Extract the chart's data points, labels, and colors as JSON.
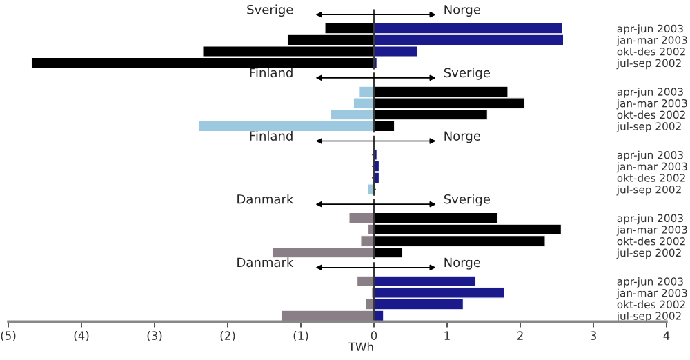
{
  "chart_data": [
    {
      "type": "bar",
      "orientation": "horizontal",
      "categories": [
        "apr-jun 2003",
        "jan-mar 2003",
        "okt-des 2002",
        "jul-sep 2002"
      ],
      "annotations": [
        "Sverige",
        "Norge"
      ],
      "stacked": true,
      "xlim": [
        -5,
        4
      ],
      "tick_labels": "y",
      "series": [
        {
          "color": "#000000",
          "values": [
            -0.67,
            -1.18,
            -2.34,
            -4.68
          ]
        },
        {
          "color": "#1a1a8c",
          "values": [
            2.58,
            2.59,
            0.6,
            0.04
          ]
        }
      ]
    },
    {
      "type": "bar",
      "orientation": "horizontal",
      "categories": [
        "apr-jun 2003",
        "jan-mar 2003",
        "okt-des 2002",
        "jul-sep 2002"
      ],
      "annotations": [
        "Finland",
        "Sverige"
      ],
      "stacked": true,
      "xlim": [
        -5,
        4
      ],
      "tick_labels": "y",
      "series": [
        {
          "color": "#9cc8e0",
          "values": [
            -0.2,
            -0.28,
            -0.59,
            -2.4
          ]
        },
        {
          "color": "#000000",
          "values": [
            1.83,
            2.06,
            1.55,
            0.28
          ]
        }
      ]
    },
    {
      "type": "bar",
      "orientation": "horizontal",
      "categories": [
        "apr-jun 2003",
        "jan-mar 2003",
        "okt-des 2002",
        "jul-sep 2002"
      ],
      "annotations": [
        "Finland",
        "Norge"
      ],
      "stacked": true,
      "xlim": [
        -5,
        4
      ],
      "tick_labels": "y",
      "series": [
        {
          "color": "#9cc8e0",
          "values": [
            null,
            null,
            null,
            -0.09
          ]
        },
        {
          "color": "#1a1a8c",
          "values": [
            0.04,
            0.07,
            0.07,
            null
          ]
        }
      ]
    },
    {
      "type": "bar",
      "orientation": "horizontal",
      "categories": [
        "apr-jun 2003",
        "jan-mar 2003",
        "okt-des 2002",
        "jul-sep 2002"
      ],
      "annotations": [
        "Danmark",
        "Sverige"
      ],
      "stacked": true,
      "xlim": [
        -5,
        4
      ],
      "tick_labels": "y",
      "series": [
        {
          "color": "#8a7f87",
          "values": [
            -0.34,
            -0.08,
            -0.18,
            -1.39
          ]
        },
        {
          "color": "#000000",
          "values": [
            1.69,
            2.56,
            2.34,
            0.39
          ]
        }
      ]
    },
    {
      "type": "bar",
      "orientation": "horizontal",
      "categories": [
        "apr-jun 2003",
        "jan-mar 2003",
        "okt-des 2002",
        "jul-sep 2002"
      ],
      "annotations": [
        "Danmark",
        "Norge"
      ],
      "stacked": true,
      "xlim": [
        -5,
        4
      ],
      "xlabel": "TWh",
      "xticks": [
        {
          "value": -5,
          "label": "(5)"
        },
        {
          "value": -4,
          "label": "(4)"
        },
        {
          "value": -3,
          "label": "(3)"
        },
        {
          "value": -2,
          "label": "(2)"
        },
        {
          "value": -1,
          "label": "(1)"
        },
        0,
        1,
        2,
        3,
        4
      ],
      "series": [
        {
          "color": "#8a7f87",
          "values": [
            -0.23,
            -0.03,
            -0.11,
            -1.27
          ]
        },
        {
          "color": "#1a1a8c",
          "values": [
            1.39,
            1.78,
            1.22,
            0.13
          ]
        }
      ]
    }
  ]
}
